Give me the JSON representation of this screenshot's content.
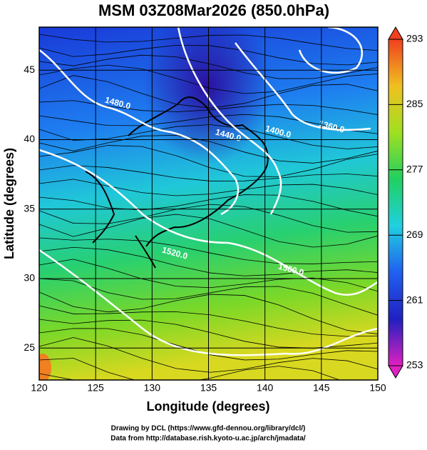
{
  "chart_data": {
    "type": "contour",
    "title": "MSM 03Z08Mar2026 (850.0hPa)",
    "xlabel": "Longitude (degrees)",
    "ylabel": "Latitude  (degrees)",
    "xlim": [
      120,
      150
    ],
    "ylim": [
      22.7,
      48.1
    ],
    "xticks": [
      120,
      125,
      130,
      135,
      140,
      145,
      150
    ],
    "yticks": [
      25,
      30,
      35,
      40,
      45
    ],
    "grid": true,
    "colorbar": {
      "lim": [
        253,
        293
      ],
      "ticks": [
        253,
        261,
        269,
        277,
        285,
        293
      ],
      "colors": [
        "#e020c0",
        "#2020c0",
        "#2060f0",
        "#20d0e0",
        "#20d060",
        "#a0e020",
        "#f0c020",
        "#f04020"
      ]
    },
    "contour_labels": [
      "1480.0",
      "1440.0",
      "1400.0",
      "1360.0",
      "1520.0",
      "1560.0"
    ],
    "footer": [
      "Drawing by DCL (https://www.gfd-dennou.org/library/dcl/)",
      "Data from http://database.rish.kyoto-u.ac.jp/arch/jmadata/"
    ]
  }
}
